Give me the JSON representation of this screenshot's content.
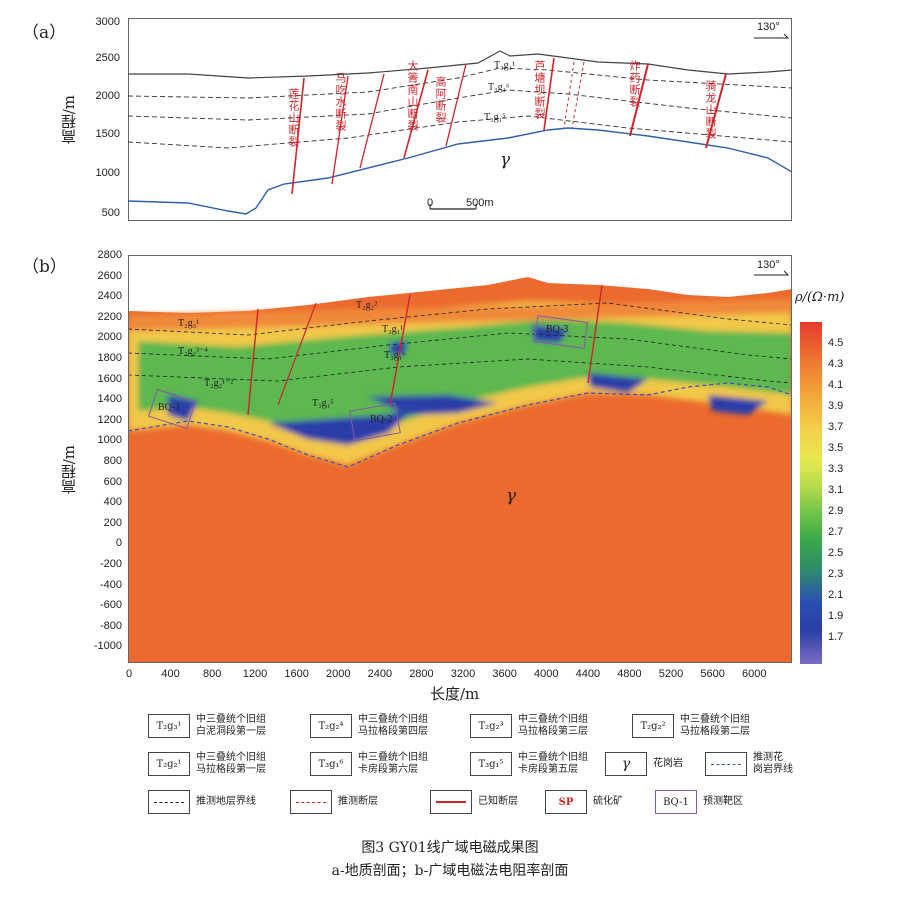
{
  "panel_a": {
    "label": "（a）",
    "orientation": "130°",
    "y_axis_title": "高程/m",
    "y_ticks": [
      "3000",
      "2500",
      "2000",
      "1500",
      "1000",
      "500"
    ],
    "scale_zero": "0",
    "scale_len": "500m",
    "fault_labels": [
      "莲花山断裂",
      "马吃水断裂",
      "大箐南山断裂",
      "高阿断裂",
      "芦塘坝断裂",
      "炸药断裂",
      "骑龙山断裂"
    ],
    "strata_labels": [
      "T₃g₁¹",
      "T₃g₁⁶",
      "T₃g₁⁵"
    ],
    "granite": "γ"
  },
  "panel_b": {
    "label": "（b）",
    "orientation": "130°",
    "y_axis_title": "高程/m",
    "x_axis_title": "长度/m",
    "y_ticks": [
      "2800",
      "2600",
      "2400",
      "2200",
      "2000",
      "1800",
      "1600",
      "1400",
      "1200",
      "1000",
      "800",
      "600",
      "400",
      "200",
      "0",
      "-200",
      "-400",
      "-600",
      "-800",
      "-1000"
    ],
    "x_ticks": [
      "0",
      "400",
      "800",
      "1200",
      "1600",
      "2000",
      "2400",
      "2800",
      "3200",
      "3600",
      "4000",
      "4400",
      "4800",
      "5200",
      "5600",
      "6000"
    ],
    "strata_labels": [
      "T₂g₃¹",
      "T₂g₂²",
      "T₃g₁¹",
      "T₂g₂³⁻⁴",
      "T₃g₁⁶",
      "T₂g₂¹⁻²",
      "T₃g₁⁵"
    ],
    "targets": [
      "BQ-1",
      "BQ-2",
      "BQ-3"
    ],
    "granite": "γ",
    "colorbar_title": "ρ/(Ω·m)",
    "colorbar_ticks": [
      "4.5",
      "4.3",
      "4.1",
      "3.9",
      "3.7",
      "3.5",
      "3.3",
      "3.1",
      "2.9",
      "2.7",
      "2.5",
      "2.3",
      "2.1",
      "1.9",
      "1.7"
    ]
  },
  "legend": {
    "items": [
      {
        "symbol": "T₂g₃¹",
        "text": [
          "中三叠统个旧组",
          "白泥洞段第一层"
        ]
      },
      {
        "symbol": "T₂g₂⁴",
        "text": [
          "中三叠统个旧组",
          "马拉格段第四层"
        ]
      },
      {
        "symbol": "T₂g₂³",
        "text": [
          "中三叠统个旧组",
          "马拉格段第三层"
        ]
      },
      {
        "symbol": "T₂g₂²",
        "text": [
          "中三叠统个旧组",
          "马拉格段第二层"
        ]
      },
      {
        "symbol": "T₂g₂¹",
        "text": [
          "中三叠统个旧组",
          "马拉格段第一层"
        ]
      },
      {
        "symbol": "T₃g₁⁶",
        "text": [
          "中三叠统个旧组",
          "卡房段第六层"
        ]
      },
      {
        "symbol": "T₃g₁⁵",
        "text": [
          "中三叠统个旧组",
          "卡房段第五层"
        ]
      },
      {
        "symbol": "γ",
        "text": [
          "花岗岩"
        ]
      },
      {
        "symbol": "",
        "text": [
          "推测花",
          "岗岩界线"
        ]
      },
      {
        "symbol": "",
        "text": [
          "推测地层界线"
        ]
      },
      {
        "symbol": "",
        "text": [
          "推测断层"
        ]
      },
      {
        "symbol": "",
        "text": [
          "已知断层"
        ]
      },
      {
        "symbol": "SP",
        "text": [
          "硫化矿"
        ]
      },
      {
        "symbol": "BQ-1",
        "text": [
          "预测靶区"
        ]
      }
    ]
  },
  "caption": {
    "line1": "图3 GY01线广域电磁成果图",
    "line2": "a-地质剖面；b-广域电磁法电阻率剖面"
  },
  "colors": {
    "fault": "#d2232a",
    "granite_line": "#2f5db0",
    "high_res": "#ec6a2e",
    "low_res": "#2b3ea8",
    "mid_res": "#3aa64a"
  }
}
